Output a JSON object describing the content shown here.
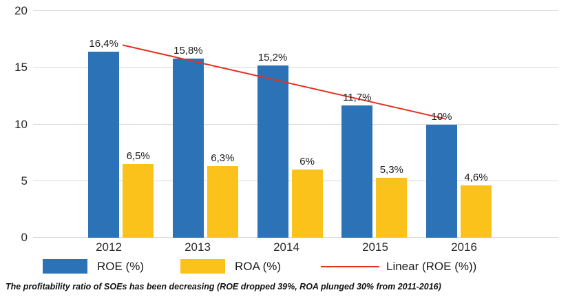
{
  "chart_data": {
    "type": "bar",
    "title": "",
    "categories": [
      "2012",
      "2013",
      "2014",
      "2015",
      "2016"
    ],
    "series": [
      {
        "name": "ROE (%)",
        "color": "#2C72B7",
        "values": [
          16.4,
          15.8,
          15.2,
          11.7,
          10
        ],
        "labels": [
          "16,4%",
          "15,8%",
          "15,2%",
          "11,7%",
          "10%"
        ]
      },
      {
        "name": "ROA (%)",
        "color": "#FCC21C",
        "values": [
          6.5,
          6.3,
          6,
          5.3,
          4.6
        ],
        "labels": [
          "6,5%",
          "6,3%",
          "6%",
          "5,3%",
          "4,6%"
        ]
      }
    ],
    "trendline": {
      "name": "Linear (ROE (%))",
      "series": "ROE (%)",
      "color": "#E23222",
      "start_value": 17.0,
      "end_value": 10.5
    },
    "xlabel": "",
    "ylabel": "",
    "ylim": [
      0,
      20
    ],
    "yticks": [
      0,
      5,
      10,
      15,
      20
    ],
    "grid": true,
    "legend_position": "bottom",
    "grid_color": "#D8D8D8"
  },
  "legend": {
    "items": [
      {
        "label": "ROE (%)",
        "swatch": "blue-rect",
        "color": "#2C72B7"
      },
      {
        "label": "ROA (%)",
        "swatch": "yellow-rect",
        "color": "#FCC21C"
      },
      {
        "label": "Linear (ROE (%))",
        "swatch": "red-line",
        "color": "#E23222"
      }
    ]
  },
  "caption": "The profitability ratio of SOEs has been decreasing (ROE dropped 39%, ROA plunged 30% from 2011-2016)"
}
